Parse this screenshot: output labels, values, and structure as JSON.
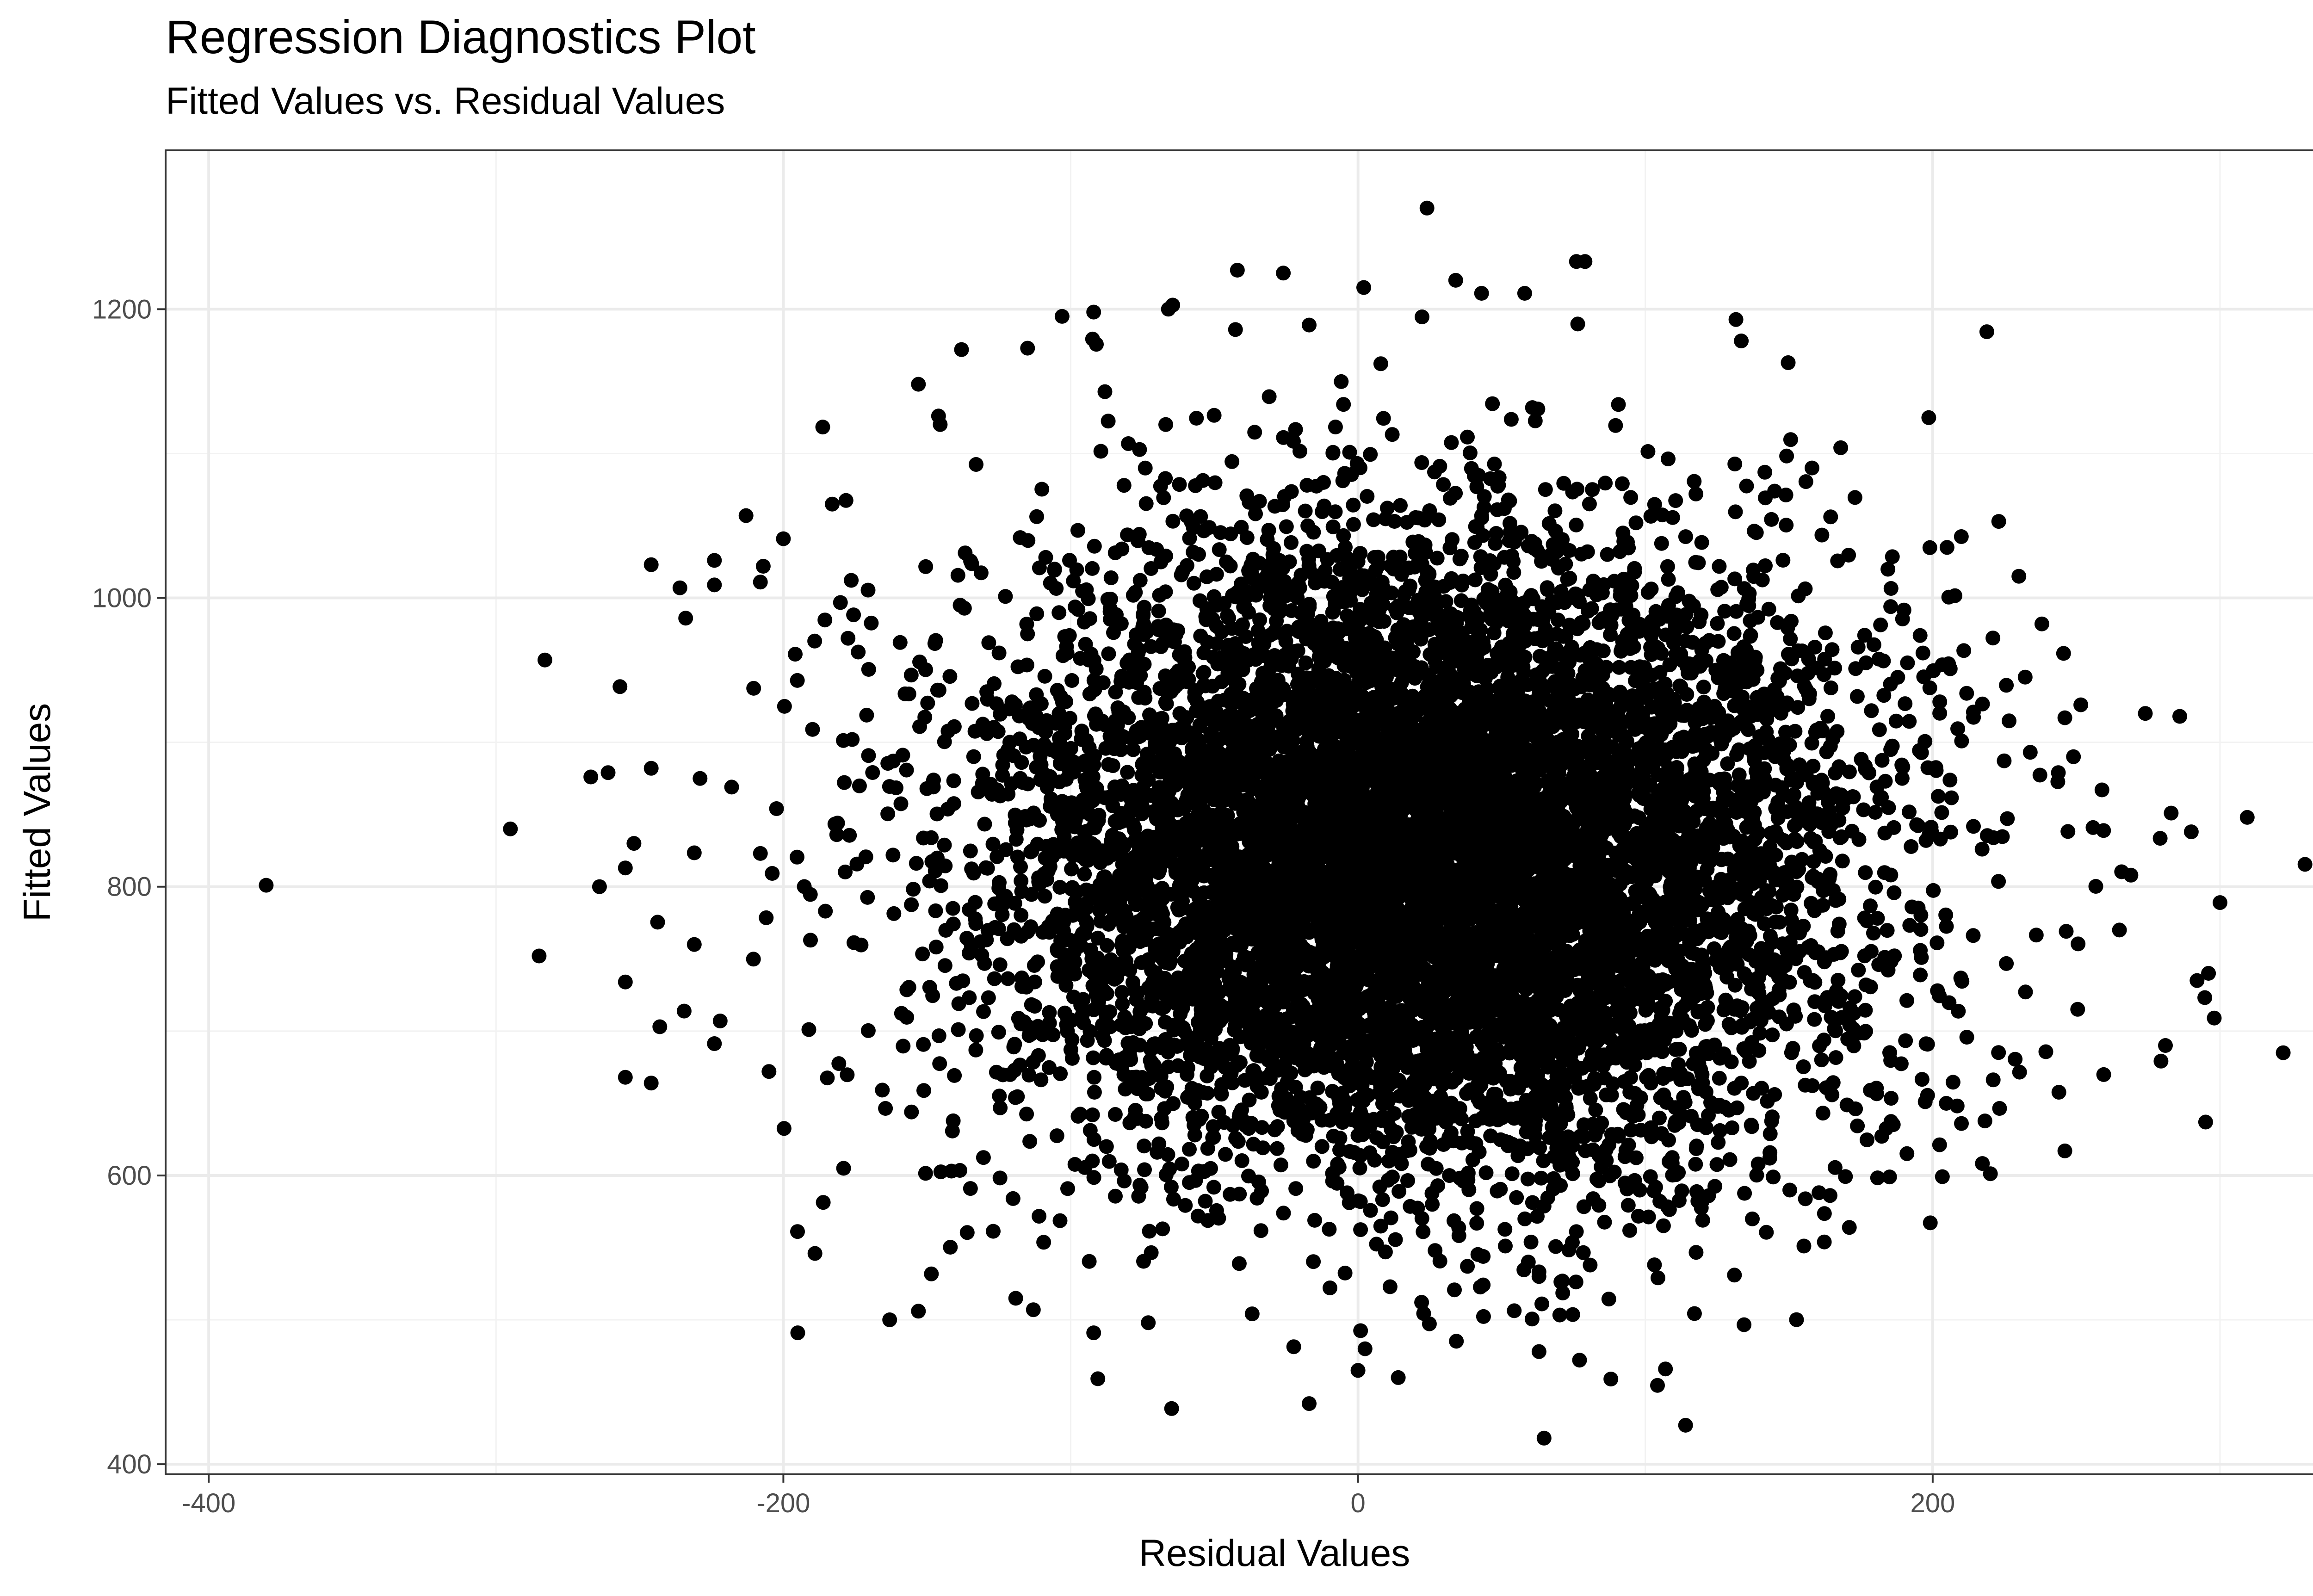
{
  "chart_data": {
    "type": "scatter",
    "title": "Regression Diagnostics Plot",
    "subtitle": "Fitted Values vs. Residual Values",
    "xlabel": "Residual Values",
    "ylabel": "Fitted Values",
    "xlim": [
      -415,
      357
    ],
    "ylim": [
      393,
      1310
    ],
    "x_ticks": [
      -400,
      -200,
      0,
      200
    ],
    "y_ticks": [
      400,
      600,
      800,
      1000,
      1200
    ],
    "grid": true,
    "legend": "none",
    "point_color": "#000000",
    "density_core": {
      "x_center": 25,
      "x_spread": 75,
      "y_center": 820,
      "y_spread": 110
    },
    "points": [
      {
        "x": -380,
        "y": 801
      },
      {
        "x": -295,
        "y": 840
      },
      {
        "x": -283,
        "y": 957
      },
      {
        "x": -285,
        "y": 752
      },
      {
        "x": -267,
        "y": 876
      },
      {
        "x": -264,
        "y": 800
      },
      {
        "x": -261,
        "y": 879
      },
      {
        "x": -255,
        "y": 813
      },
      {
        "x": -252,
        "y": 830
      },
      {
        "x": -255,
        "y": 734
      },
      {
        "x": -255,
        "y": 668
      },
      {
        "x": -246,
        "y": 1023
      },
      {
        "x": -246,
        "y": 882
      },
      {
        "x": -246,
        "y": 664
      },
      {
        "x": -243,
        "y": 703
      },
      {
        "x": -236,
        "y": 1007
      },
      {
        "x": -234,
        "y": 986
      },
      {
        "x": -231,
        "y": 760
      },
      {
        "x": -229,
        "y": 875
      },
      {
        "x": -224,
        "y": 1026
      },
      {
        "x": -224,
        "y": 1009
      },
      {
        "x": -222,
        "y": 707
      },
      {
        "x": -218,
        "y": 869
      },
      {
        "x": -213,
        "y": 1057
      },
      {
        "x": -208,
        "y": 1011
      },
      {
        "x": -208,
        "y": 823
      },
      {
        "x": -205,
        "y": 672
      },
      {
        "x": -200,
        "y": 1041
      },
      {
        "x": -195,
        "y": 491
      },
      {
        "x": -189,
        "y": 546
      },
      {
        "x": -183,
        "y": 1065
      },
      {
        "x": -163,
        "y": 500
      },
      {
        "x": -153,
        "y": 1148
      },
      {
        "x": -153,
        "y": 506
      },
      {
        "x": -146,
        "y": 1126
      },
      {
        "x": -138,
        "y": 1172
      },
      {
        "x": -115,
        "y": 1173
      },
      {
        "x": -113,
        "y": 507
      },
      {
        "x": -103,
        "y": 1195
      },
      {
        "x": -92,
        "y": 1198
      },
      {
        "x": -92,
        "y": 491
      },
      {
        "x": -73,
        "y": 498
      },
      {
        "x": -66,
        "y": 1200
      },
      {
        "x": -42,
        "y": 1227
      },
      {
        "x": -26,
        "y": 1225
      },
      {
        "x": -17,
        "y": 1189
      },
      {
        "x": -17,
        "y": 442
      },
      {
        "x": 0,
        "y": 465
      },
      {
        "x": 2,
        "y": 1215
      },
      {
        "x": 14,
        "y": 460
      },
      {
        "x": 24,
        "y": 1270
      },
      {
        "x": 34,
        "y": 1220
      },
      {
        "x": 43,
        "y": 1211
      },
      {
        "x": 58,
        "y": 1211
      },
      {
        "x": 63,
        "y": 478
      },
      {
        "x": 76,
        "y": 1233
      },
      {
        "x": 79,
        "y": 1233
      },
      {
        "x": 88,
        "y": 459
      },
      {
        "x": 107,
        "y": 466
      },
      {
        "x": 114,
        "y": 427
      },
      {
        "x": 131,
        "y": 531
      },
      {
        "x": 145,
        "y": 1074
      },
      {
        "x": 158,
        "y": 1090
      },
      {
        "x": 168,
        "y": 1104
      },
      {
        "x": 171,
        "y": 564
      },
      {
        "x": 185,
        "y": 599
      },
      {
        "x": 205,
        "y": 1035
      },
      {
        "x": 210,
        "y": 636
      },
      {
        "x": 223,
        "y": 1053
      },
      {
        "x": 230,
        "y": 1015
      },
      {
        "x": 238,
        "y": 982
      },
      {
        "x": 246,
        "y": 917
      },
      {
        "x": 246,
        "y": 617
      },
      {
        "x": 249,
        "y": 890
      },
      {
        "x": 265,
        "y": 770
      },
      {
        "x": 269,
        "y": 808
      },
      {
        "x": 274,
        "y": 920
      },
      {
        "x": 281,
        "y": 690
      },
      {
        "x": 283,
        "y": 851
      },
      {
        "x": 286,
        "y": 918
      },
      {
        "x": 290,
        "y": 838
      },
      {
        "x": 292,
        "y": 735
      },
      {
        "x": 295,
        "y": 637
      },
      {
        "x": 296,
        "y": 740
      },
      {
        "x": 298,
        "y": 709
      },
      {
        "x": 300,
        "y": 789
      },
      {
        "x": 322,
        "y": 685
      }
    ]
  }
}
